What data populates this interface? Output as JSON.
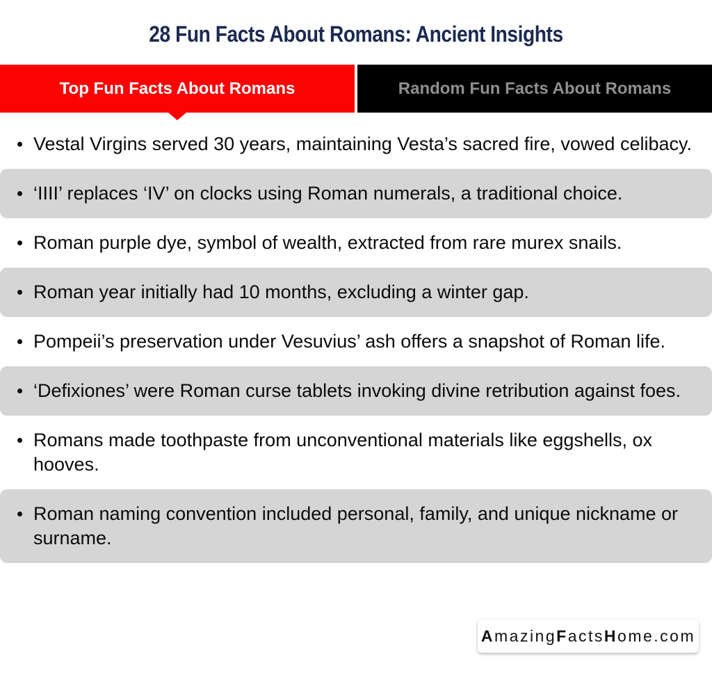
{
  "title": "28 Fun Facts About Romans: Ancient Insights",
  "tabs": {
    "active": {
      "label": "Top Fun Facts About Romans"
    },
    "inactive": {
      "label": "Random Fun Facts About Romans"
    }
  },
  "facts": [
    "Vestal Virgins served 30 years, maintaining Vesta’s sacred fire, vowed celibacy.",
    "‘IIII’ replaces ‘IV’ on clocks using Roman numerals, a traditional choice.",
    "Roman purple dye, symbol of wealth, extracted from rare murex snails.",
    "Roman year initially had 10 months, excluding a winter gap.",
    "Pompeii’s preservation under Vesuvius’ ash offers a snapshot of Roman life.",
    "‘Defixiones’ were Roman curse tablets invoking divine retribution against foes.",
    "Romans made toothpaste from unconventional materials like eggshells, ox hooves.",
    "Roman naming convention included personal, family, and unique nickname or surname."
  ],
  "watermark": {
    "parts": [
      "Amazing",
      "Facts",
      "Home"
    ],
    "suffix": ".com"
  },
  "colors": {
    "accent_red": "#fb0303",
    "tab_black": "#000000",
    "tab_inactive_text": "#8f8f8f",
    "title_navy": "#1c2a51",
    "row_gray": "#d5d5d5",
    "text_black": "#0b0b0b"
  }
}
